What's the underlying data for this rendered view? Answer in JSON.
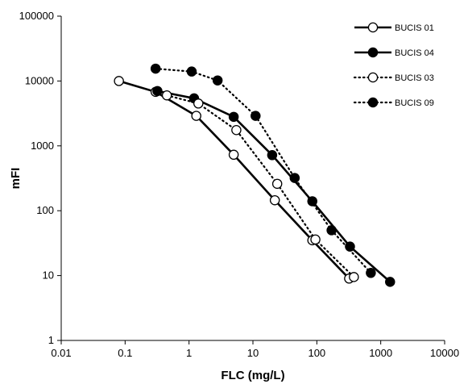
{
  "chart_data": {
    "type": "line",
    "title": "",
    "xlabel": "FLC (mg/L)",
    "ylabel": "mFI",
    "x_scale": "log",
    "y_scale": "log",
    "xlim": [
      0.01,
      10000
    ],
    "ylim": [
      1,
      100000
    ],
    "x_ticks": [
      "0.01",
      "0.1",
      "1",
      "10",
      "100",
      "1000",
      "10000"
    ],
    "y_ticks": [
      "1",
      "10",
      "100",
      "1000",
      "10000",
      "100000"
    ],
    "grid": false,
    "legend_position": "top-right",
    "series": [
      {
        "name": "BUCIS 01",
        "line": "solid",
        "marker": "open-circle",
        "x": [
          0.08,
          0.3,
          1.3,
          5,
          22,
          85,
          320
        ],
        "y": [
          10000,
          6800,
          2900,
          730,
          145,
          35,
          9
        ]
      },
      {
        "name": "BUCIS 04",
        "line": "solid",
        "marker": "filled-circle",
        "x": [
          0.32,
          1.2,
          5,
          20,
          85,
          330,
          1400
        ],
        "y": [
          7000,
          5400,
          2800,
          720,
          140,
          28,
          8
        ]
      },
      {
        "name": "BUCIS 03",
        "line": "dotted",
        "marker": "open-circle",
        "x": [
          0.45,
          1.4,
          5.5,
          24,
          95,
          380
        ],
        "y": [
          6000,
          4500,
          1750,
          260,
          36,
          9.5
        ]
      },
      {
        "name": "BUCIS 09",
        "line": "dotted",
        "marker": "filled-circle",
        "x": [
          0.3,
          1.1,
          2.8,
          11,
          45,
          170,
          700
        ],
        "y": [
          15500,
          14000,
          10200,
          2900,
          320,
          50,
          11
        ]
      }
    ]
  }
}
